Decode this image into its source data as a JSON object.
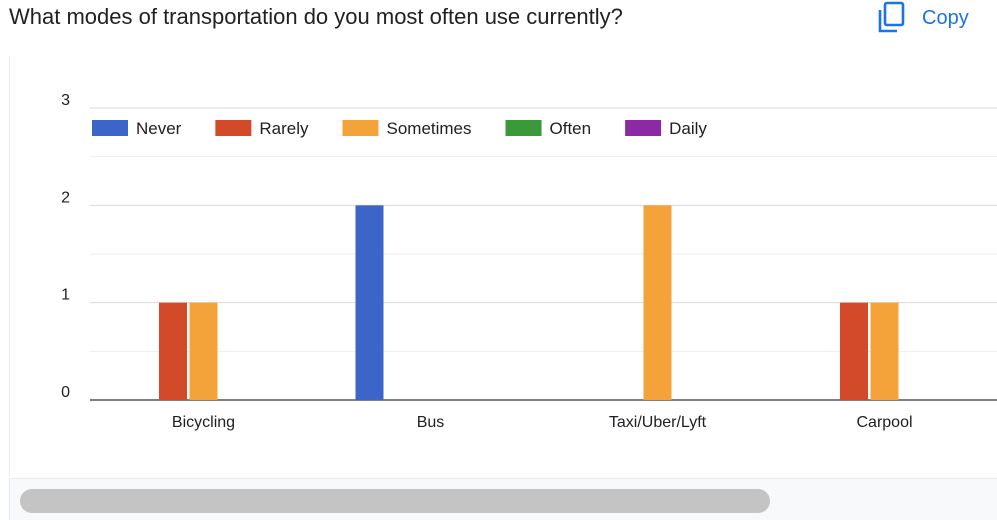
{
  "question": {
    "title": "What modes of transportation do you most often use currently?"
  },
  "toolbar": {
    "copy_label": "Copy",
    "copy_icon": "copy-icon"
  },
  "colors": {
    "grid": "#e0e0e0",
    "axis": "#333333",
    "text": "#202124",
    "accent": "#1a73e8"
  },
  "chart_data": {
    "type": "bar",
    "title": "",
    "xlabel": "",
    "ylabel": "",
    "categories": [
      "Bicycling",
      "Bus",
      "Taxi/Uber/Lyft",
      "Carpool"
    ],
    "ylim": [
      0,
      3
    ],
    "yticks": [
      0,
      1,
      2,
      3
    ],
    "grid": true,
    "legend_position": "top-left",
    "series": [
      {
        "name": "Never",
        "color": "#3c65c9",
        "values": [
          0,
          2,
          0,
          0
        ]
      },
      {
        "name": "Rarely",
        "color": "#d24a2a",
        "values": [
          1,
          0,
          0,
          1
        ]
      },
      {
        "name": "Sometimes",
        "color": "#f4a23a",
        "values": [
          1,
          0,
          2,
          1
        ]
      },
      {
        "name": "Often",
        "color": "#3a9a3a",
        "values": [
          0,
          0,
          0,
          0
        ]
      },
      {
        "name": "Daily",
        "color": "#8c2aa6",
        "values": [
          0,
          0,
          0,
          0
        ]
      }
    ]
  }
}
